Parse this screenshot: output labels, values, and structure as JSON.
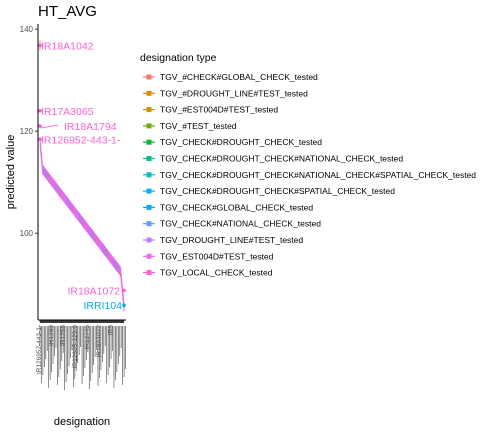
{
  "chart_data": {
    "type": "scatter",
    "title": "HT_AVG",
    "xlabel": "designation",
    "ylabel": "predicted value",
    "ylim": [
      83,
      141
    ],
    "yticks": [
      100,
      120,
      140
    ],
    "grid": false,
    "legend_position": "right",
    "legend": {
      "title": "designation type",
      "entries": [
        {
          "name": "TGV_#CHECK#GLOBAL_CHECK_tested",
          "color": "#F8766D"
        },
        {
          "name": "TGV_#DROUGHT_LINE#TEST_tested",
          "color": "#E58700"
        },
        {
          "name": "TGV_#EST004D#TEST_tested",
          "color": "#C99800"
        },
        {
          "name": "TGV_#TEST_tested",
          "color": "#6BB100"
        },
        {
          "name": "TGV_CHECK#DROUGHT_CHECK_tested",
          "color": "#00BA38"
        },
        {
          "name": "TGV_CHECK#DROUGHT_CHECK#NATIONAL_CHECK_tested",
          "color": "#00C08B"
        },
        {
          "name": "TGV_CHECK#DROUGHT_CHECK#NATIONAL_CHECK#SPATIAL_CHECK_tested",
          "color": "#00BFC4"
        },
        {
          "name": "TGV_CHECK#DROUGHT_CHECK#SPATIAL_CHECK_tested",
          "color": "#00B0F6"
        },
        {
          "name": "TGV_CHECK#GLOBAL_CHECK_tested",
          "color": "#00A9FF"
        },
        {
          "name": "TGV_CHECK#NATIONAL_CHECK_tested",
          "color": "#619CFF"
        },
        {
          "name": "TGV_DROUGHT_LINE#TEST_tested",
          "color": "#B983FF"
        },
        {
          "name": "TGV_EST004D#TEST_tested",
          "color": "#E76BF3"
        },
        {
          "name": "TGV_LOCAL_CHECK_tested",
          "color": "#FD61D1"
        }
      ]
    },
    "n_points": 420,
    "y_first": 136.8,
    "y_plateau_start": 112.5,
    "y_plateau_end": 92.5,
    "y_last": 85.5,
    "annotations": [
      {
        "text": "IR18A1042",
        "y": 136.8,
        "color": "#FD61D1"
      },
      {
        "text": "IR17A3065",
        "y": 124.0,
        "color": "#FD61D1"
      },
      {
        "text": "IR18A1794",
        "y": 121.0,
        "color": "#FD61D1"
      },
      {
        "text": "IR126952-443-1-",
        "y": 118.4,
        "color": "#FD61D1"
      },
      {
        "text": "IR18A1072",
        "y": 88.8,
        "color": "#FD61D1"
      },
      {
        "text": "IRRI104",
        "y": 85.9,
        "color": "#00A9FF"
      }
    ],
    "x_tick_labels": [
      "IR126952-443-1-",
      "IR1283",
      "IR1256",
      "IR12685-129-9",
      "IR12745",
      "IR18A1072",
      "IR9"
    ]
  }
}
